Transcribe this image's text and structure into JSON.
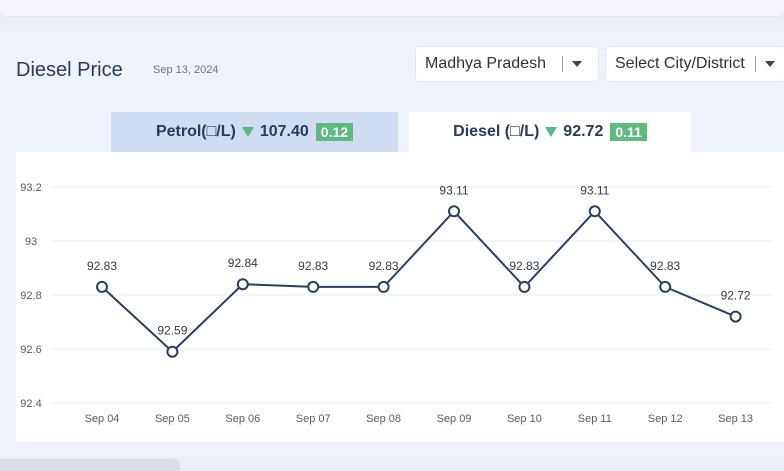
{
  "header": {
    "title": "Diesel Price",
    "date": "Sep 13, 2024"
  },
  "filters": {
    "state": "Madhya Pradesh",
    "city": "Select City/District"
  },
  "tabs": {
    "petrol": {
      "label": "Petrol(□/L)",
      "price": "107.40",
      "change": "0.12"
    },
    "diesel": {
      "label": "Diesel (□/L)",
      "price": "92.72",
      "change": "0.11"
    }
  },
  "colors": {
    "line": "#2b3f63",
    "badge": "#5dbb7f",
    "arrow": "#58b88a",
    "grid": "#e8ebf0"
  },
  "chart_data": {
    "type": "line",
    "categories": [
      "Sep 04",
      "Sep 05",
      "Sep 06",
      "Sep 07",
      "Sep 08",
      "Sep 09",
      "Sep 10",
      "Sep 11",
      "Sep 12",
      "Sep 13"
    ],
    "values": [
      92.83,
      92.59,
      92.84,
      92.83,
      92.83,
      93.11,
      92.83,
      93.11,
      92.83,
      92.72
    ],
    "value_labels": [
      "92.83",
      "92.59",
      "92.84",
      "92.83",
      "92.83",
      "93.11",
      "92.83",
      "93.11",
      "92.83",
      "92.72"
    ],
    "y_ticks": [
      93.2,
      93,
      92.8,
      92.6,
      92.4
    ],
    "y_tick_labels": [
      "93.2",
      "93",
      "92.8",
      "92.6",
      "92.4"
    ],
    "ylim": [
      92.4,
      93.2
    ],
    "grid": true,
    "legend": "none"
  }
}
